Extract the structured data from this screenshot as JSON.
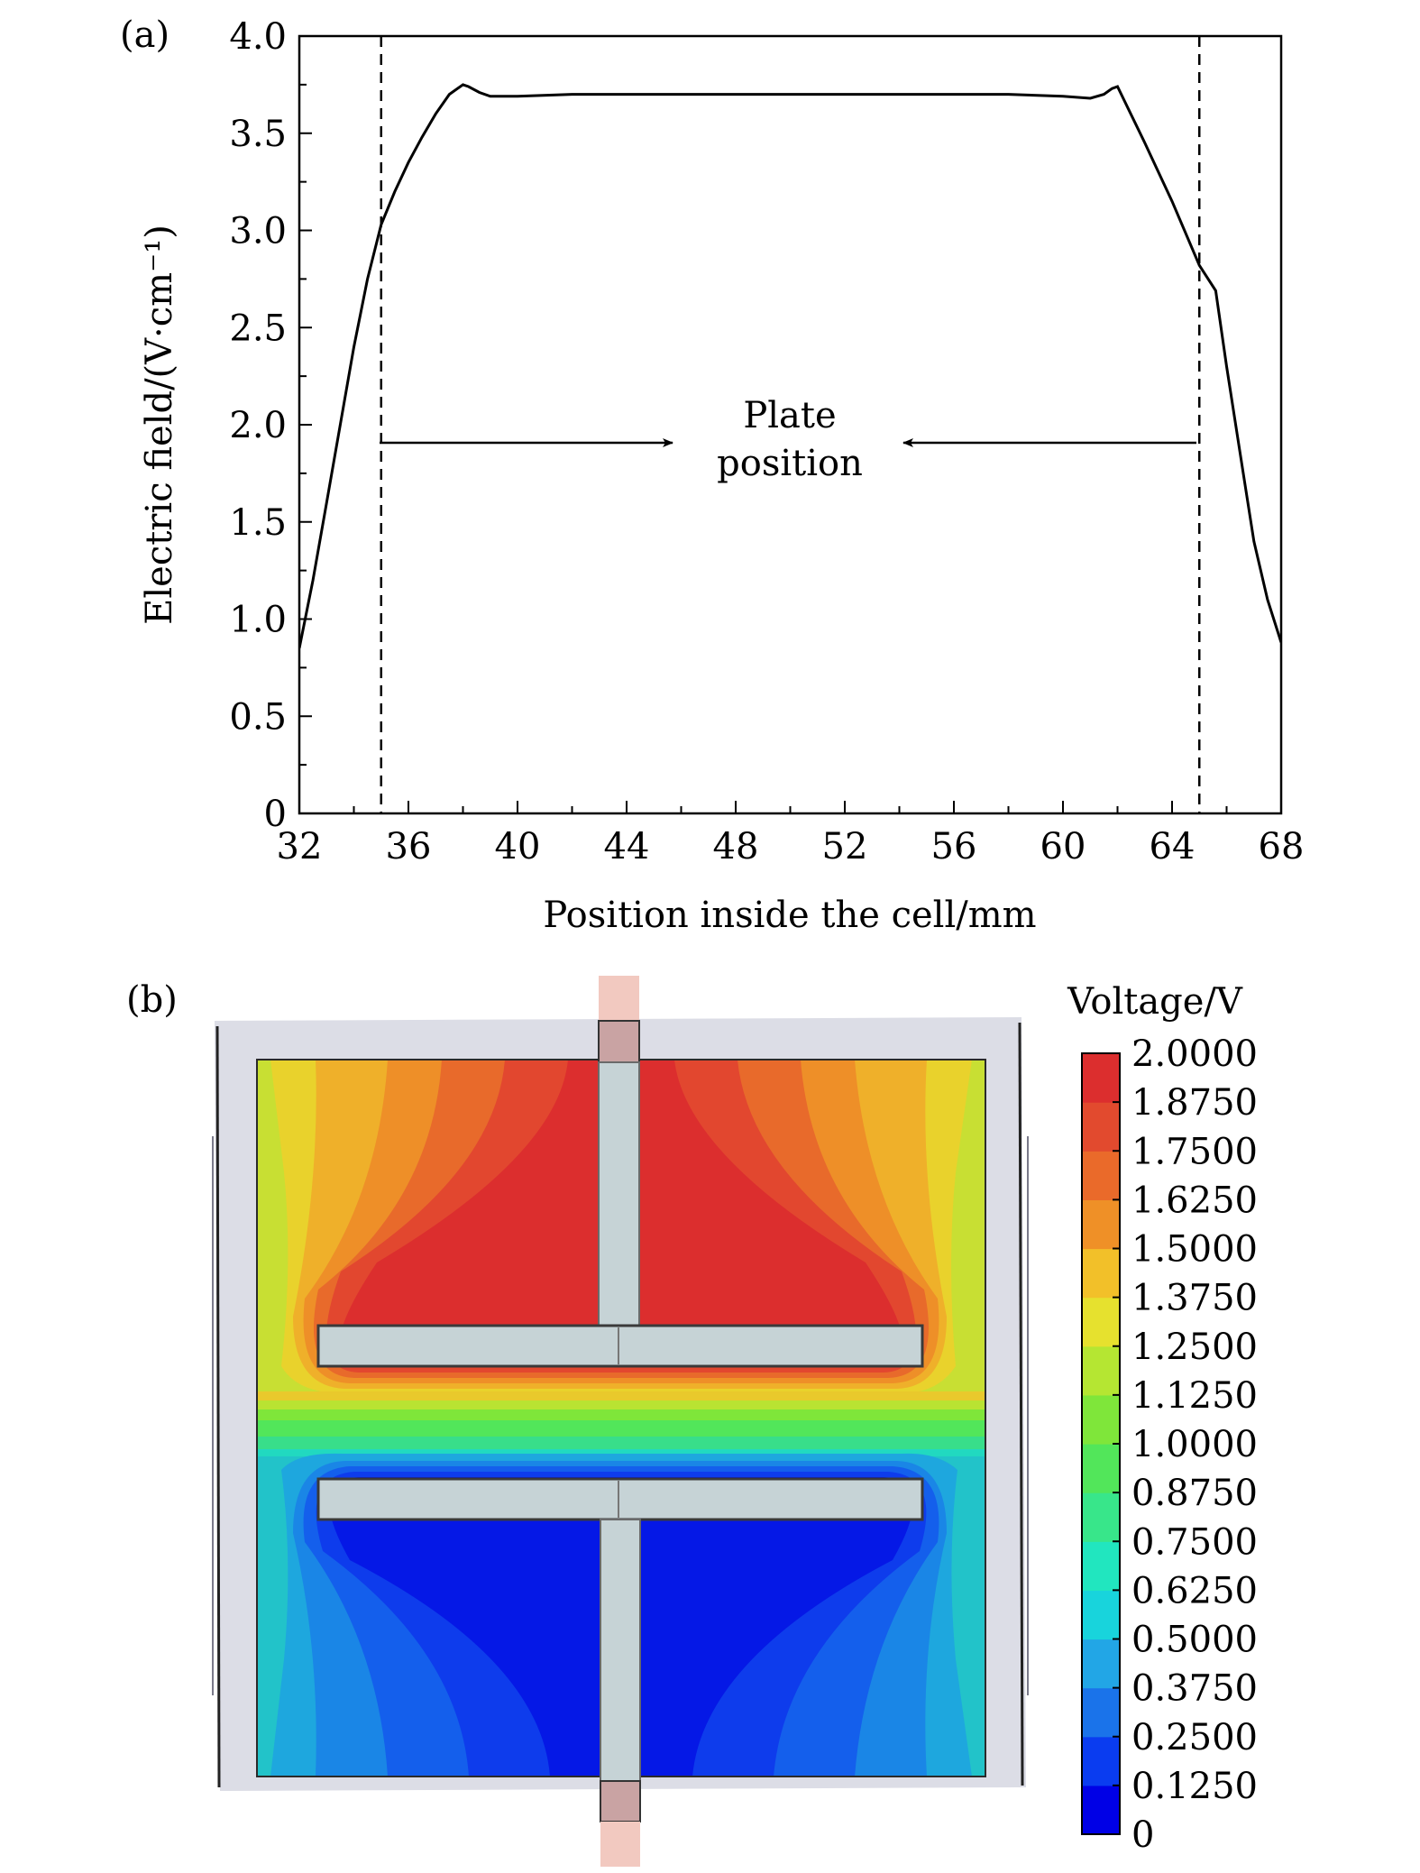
{
  "panel_a": {
    "label": "(a)",
    "annotation_line1": "Plate",
    "annotation_line2": "position"
  },
  "panel_b": {
    "label": "(b)",
    "colorbar_title": "Voltage/V",
    "colorbar_ticks": [
      "2.0000",
      "1.8750",
      "1.7500",
      "1.6250",
      "1.5000",
      "1.3750",
      "1.2500",
      "1.1250",
      "1.0000",
      "0.8750",
      "0.7500",
      "0.6250",
      "0.5000",
      "0.3750",
      "0.2500",
      "0.1250",
      "0"
    ],
    "colorbar_colors": [
      "#0000e6",
      "#0a3cf0",
      "#1a73ea",
      "#22a6e6",
      "#18d4dc",
      "#21e6bf",
      "#38e68a",
      "#52e65a",
      "#7fe63a",
      "#b5e632",
      "#e6e12e",
      "#f2c029",
      "#ef9027",
      "#ea6a2a",
      "#e24a2e",
      "#dc2e2e"
    ]
  },
  "chart_data": {
    "type": "line",
    "title": "",
    "xlabel": "Position inside the cell/mm",
    "ylabel": "Electric field/(V·cm⁻¹)",
    "xlim": [
      32,
      68
    ],
    "ylim": [
      0,
      4.0
    ],
    "x_ticks": [
      "32",
      "36",
      "40",
      "44",
      "48",
      "52",
      "56",
      "60",
      "64",
      "68"
    ],
    "y_ticks": [
      "0",
      "0.5",
      "1.0",
      "1.5",
      "2.0",
      "2.5",
      "3.0",
      "3.5",
      "4.0"
    ],
    "grid": false,
    "reference_lines_x": [
      35,
      65
    ],
    "series": [
      {
        "x": [
          32,
          32.5,
          33,
          33.5,
          34,
          34.5,
          35,
          35.5,
          36,
          36.5,
          37,
          37.5,
          38,
          38.2,
          38.6,
          39,
          40,
          42,
          44,
          48,
          52,
          56,
          58,
          60,
          61,
          61.5,
          61.8,
          62,
          63,
          64,
          65,
          65.6,
          66,
          66.5,
          67,
          67.5,
          68
        ],
        "y": [
          0.85,
          1.2,
          1.6,
          2.0,
          2.4,
          2.75,
          3.03,
          3.2,
          3.35,
          3.48,
          3.6,
          3.7,
          3.75,
          3.74,
          3.71,
          3.69,
          3.69,
          3.7,
          3.7,
          3.7,
          3.7,
          3.7,
          3.7,
          3.69,
          3.68,
          3.7,
          3.73,
          3.74,
          3.45,
          3.15,
          2.82,
          2.69,
          2.3,
          1.85,
          1.4,
          1.1,
          0.88
        ]
      }
    ]
  }
}
